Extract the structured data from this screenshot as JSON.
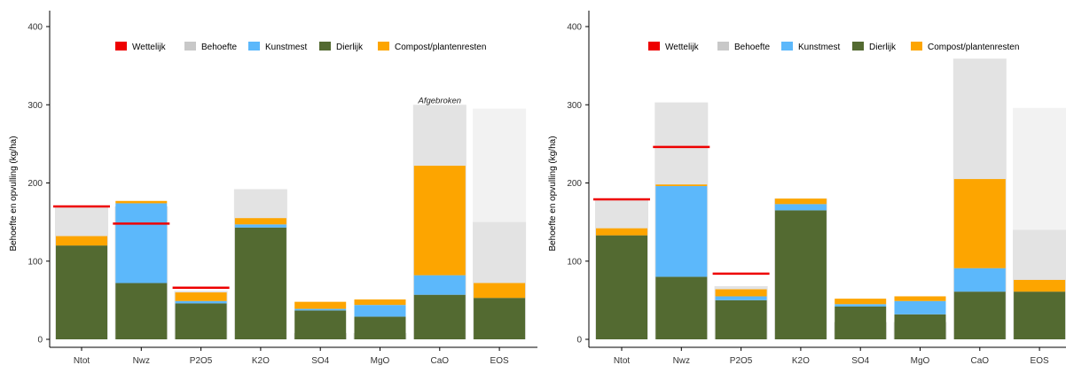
{
  "colors": {
    "Wettelijk": "#ee0000",
    "Behoefte": "#c8c8c8",
    "Behoefte_fill": "#e3e3e3",
    "Behoefte_light": "#f2f2f2",
    "Kunstmest": "#5cb8fb",
    "Dierlijk": "#536a31",
    "Compost": "#fda500",
    "axis": "#000000",
    "tick_text": "#333333"
  },
  "legend_items": [
    {
      "name": "Wettelijk",
      "color_key": "Wettelijk",
      "shape": "line"
    },
    {
      "name": "Behoefte",
      "color_key": "Behoefte",
      "shape": "box"
    },
    {
      "name": "Kunstmest",
      "color_key": "Kunstmest",
      "shape": "box"
    },
    {
      "name": "Dierlijk",
      "color_key": "Dierlijk",
      "shape": "box"
    },
    {
      "name": "Compost/plantenresten",
      "color_key": "Compost",
      "shape": "box"
    }
  ],
  "chart_data": [
    {
      "type": "bar",
      "stacked": true,
      "ylabel": "Behoefte en opvulling (kg/ha)",
      "ylim": [
        0,
        400
      ],
      "yticks": [
        0,
        100,
        200,
        300,
        400
      ],
      "legend_position": "top",
      "grid": false,
      "categories": [
        "Ntot",
        "Nwz",
        "P2O5",
        "K2O",
        "SO4",
        "MgO",
        "CaO",
        "EOS"
      ],
      "behoefte": [
        170,
        170,
        62,
        192,
        8,
        8,
        300,
        150
      ],
      "behoefte_extra": [
        null,
        null,
        null,
        null,
        null,
        null,
        null,
        295
      ],
      "wettelijk": [
        170,
        148,
        66,
        null,
        null,
        null,
        null,
        null
      ],
      "annotations": [
        {
          "category": "CaO",
          "text": "Afgebroken",
          "y": 301
        }
      ],
      "series": [
        {
          "name": "Dierlijk",
          "values": [
            120,
            72,
            46,
            143,
            37,
            29,
            57,
            53
          ]
        },
        {
          "name": "Kunstmest",
          "values": [
            0,
            102,
            3,
            4,
            2,
            15,
            25,
            0
          ]
        },
        {
          "name": "Compost/plantenresten",
          "values": [
            12,
            3,
            11,
            8,
            9,
            7,
            140,
            19
          ]
        }
      ]
    },
    {
      "type": "bar",
      "stacked": true,
      "ylabel": "Behoefte en opvulling (kg/ha)",
      "ylim": [
        0,
        400
      ],
      "yticks": [
        0,
        100,
        200,
        300,
        400
      ],
      "legend_position": "top",
      "grid": false,
      "categories": [
        "Ntot",
        "Nwz",
        "P2O5",
        "K2O",
        "SO4",
        "MgO",
        "CaO",
        "EOS"
      ],
      "behoefte": [
        178,
        303,
        68,
        180,
        22,
        22,
        359,
        140
      ],
      "behoefte_extra": [
        null,
        null,
        null,
        null,
        null,
        null,
        null,
        296
      ],
      "wettelijk": [
        179,
        246,
        84,
        null,
        null,
        null,
        null,
        null
      ],
      "annotations": [],
      "series": [
        {
          "name": "Dierlijk",
          "values": [
            133,
            80,
            50,
            165,
            42,
            32,
            61,
            61
          ]
        },
        {
          "name": "Kunstmest",
          "values": [
            0,
            116,
            5,
            8,
            3,
            17,
            30,
            0
          ]
        },
        {
          "name": "Compost/plantenresten",
          "values": [
            9,
            2,
            9,
            7,
            7,
            6,
            114,
            15
          ]
        }
      ]
    }
  ]
}
